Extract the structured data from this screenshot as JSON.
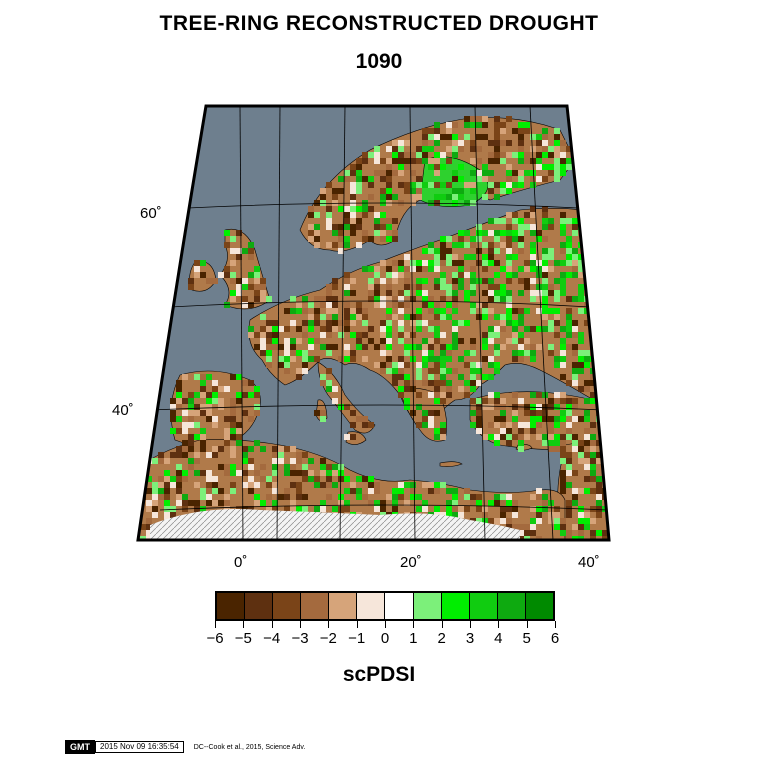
{
  "title": "TREE-RING RECONSTRUCTED DROUGHT",
  "year": "1090",
  "lat_labels": [
    "60˚",
    "40˚"
  ],
  "lon_labels": [
    "0˚",
    "20˚",
    "40˚"
  ],
  "colorbar": {
    "title": "scPDSI",
    "tick_labels": [
      "−6",
      "−5",
      "−4",
      "−3",
      "−2",
      "−1",
      "0",
      "1",
      "2",
      "3",
      "4",
      "5",
      "6"
    ],
    "colors": [
      "#4a2400",
      "#5e3010",
      "#7a4418",
      "#a46a3e",
      "#d6a47a",
      "#f6e6da",
      "#ffffff",
      "#7cf07a",
      "#00ee00",
      "#10cc10",
      "#0eaa10",
      "#008a00"
    ]
  },
  "colors": {
    "sea": "#6e7f8e",
    "land_dry": "#b07a4a",
    "land_wet": "#2ed12e",
    "no_data": "#f4f4f4"
  },
  "footer": {
    "logo": "GMT",
    "timestamp": "2015 Nov 09 16:35:54",
    "credit": "DC--Cook et al., 2015, Science Adv."
  }
}
